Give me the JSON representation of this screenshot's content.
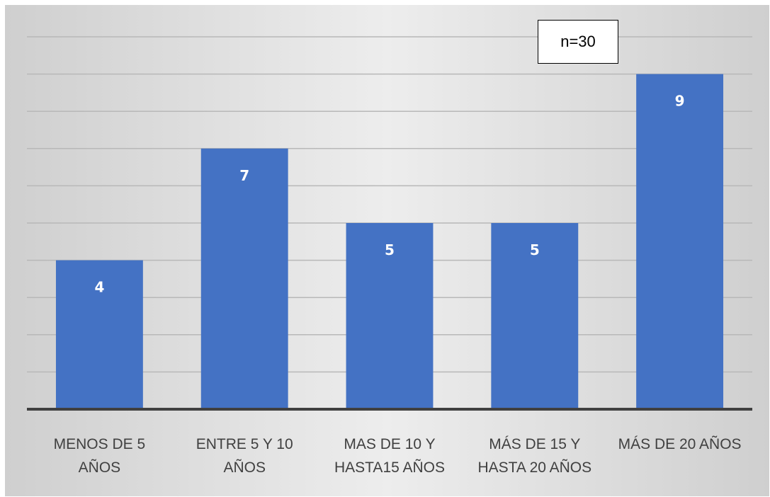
{
  "chart_data": {
    "type": "bar",
    "categories": [
      [
        "MENOS DE 5",
        "AÑOS"
      ],
      [
        "ENTRE  5 Y 10",
        "AÑOS"
      ],
      [
        "MAS DE 10 Y",
        "HASTA15 AÑOS"
      ],
      [
        "MÁS DE 15 Y",
        "HASTA 20 AÑOS"
      ],
      [
        "MÁS DE 20 AÑOS"
      ]
    ],
    "values": [
      4,
      7,
      5,
      5,
      9
    ],
    "data_labels": [
      "4",
      "7",
      "5",
      "5",
      "9"
    ],
    "annotation": "n=30",
    "ylim": [
      0,
      10
    ],
    "y_axis_shown": false,
    "grid": true,
    "bar_color": "#4472c4"
  }
}
